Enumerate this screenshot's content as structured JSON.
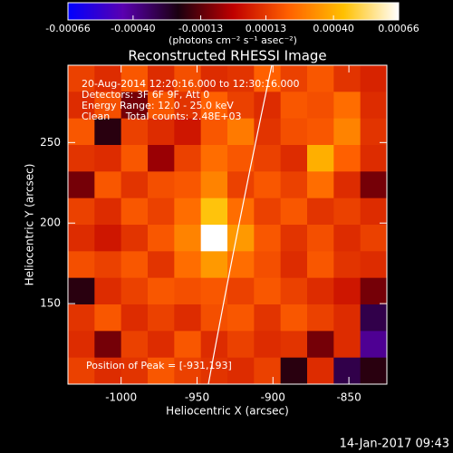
{
  "chart_data": {
    "type": "heatmap",
    "title": "Reconstructed RHESSI Image",
    "x_label": "Heliocentric X (arcsec)",
    "y_label": "Heliocentric Y (arcsec)",
    "colorbar_label": "(photons cm⁻² s⁻¹ asec⁻²)",
    "annotations": [
      "20-Aug-2014 12:20:16.000 to 12:30:16.000",
      "Detectors: 3F 6F 9F, Att 0",
      "Energy Range: 12.0 - 25.0 keV",
      "Clean     Total counts: 2.48E+03"
    ],
    "peak_label": "Position of Peak = [-931,193]",
    "footer": "14-Jan-2017 09:43",
    "xlim": [
      -1035,
      -825
    ],
    "ylim": [
      100,
      298
    ],
    "xticks": [
      -1000,
      -950,
      -900,
      -850
    ],
    "yticks": [
      150,
      200,
      250
    ],
    "zlim": [
      -0.00066,
      0.00066
    ],
    "zticks": [
      -0.00066,
      {
        "value": -0.0004,
        "label": "-0.00040"
      },
      -0.00013,
      0.00013,
      {
        "value": 0.0004,
        "label": "0.00040"
      },
      0.00066
    ],
    "colorscale": [
      "#0000ff",
      "#5a00b0",
      "#1a0010",
      "#c00000",
      "#ff6000",
      "#ffc000",
      "#ffffff"
    ],
    "z": [
      [
        0.00015,
        0.0001,
        0.0002,
        0.0001,
        0.00018,
        0.0001,
        0.00012,
        0.00022,
        0.00015,
        0.0002,
        0.00012,
        8e-05
      ],
      [
        0.0001,
        0.00018,
        -0.0001,
        0.0002,
        0.00012,
        0.00022,
        0.00015,
        0.0001,
        0.0002,
        0.00018,
        0.00025,
        0.0001
      ],
      [
        0.0002,
        -0.0002,
        0.00015,
        0.0001,
        5e-05,
        0.0002,
        0.00028,
        0.00012,
        0.00018,
        0.0002,
        0.0003,
        0.00012
      ],
      [
        0.00012,
        0.0001,
        0.0002,
        -5e-05,
        0.00015,
        0.00025,
        0.0002,
        0.00015,
        0.0001,
        0.0004,
        0.00022,
        0.0001
      ],
      [
        -0.0001,
        0.0002,
        0.00012,
        0.00018,
        0.0002,
        0.0003,
        0.00015,
        0.0002,
        0.00015,
        0.00025,
        0.0001,
        -0.0001
      ],
      [
        0.00015,
        0.0001,
        0.0002,
        0.00015,
        0.00025,
        0.00045,
        0.00025,
        0.00015,
        0.0002,
        0.00012,
        0.00015,
        0.0001
      ],
      [
        0.0001,
        5e-05,
        0.00012,
        0.0002,
        0.0003,
        0.00066,
        0.00035,
        0.0002,
        0.00012,
        0.00018,
        0.0001,
        0.00015
      ],
      [
        0.00018,
        0.00015,
        0.0002,
        0.00012,
        0.00025,
        0.00035,
        0.00025,
        0.00018,
        0.0001,
        0.0002,
        0.00012,
        0.0001
      ],
      [
        -0.0002,
        0.0001,
        0.00015,
        0.0002,
        0.00018,
        0.0002,
        0.00015,
        0.0002,
        0.00015,
        0.0001,
        5e-05,
        -0.0001
      ],
      [
        0.00012,
        0.0002,
        0.0001,
        0.00015,
        0.0001,
        0.00018,
        0.0002,
        0.00012,
        0.0002,
        0.00015,
        0.0001,
        -0.0003
      ],
      [
        0.0001,
        -0.0001,
        0.00015,
        0.0001,
        0.0002,
        0.0001,
        0.00015,
        0.0001,
        0.00012,
        -0.0001,
        0.0001,
        -0.0004
      ],
      [
        0.00015,
        0.0001,
        0.00012,
        0.0002,
        0.00015,
        0.00012,
        0.0001,
        0.00015,
        -0.0002,
        0.0001,
        -0.0003,
        -0.0002
      ]
    ]
  }
}
